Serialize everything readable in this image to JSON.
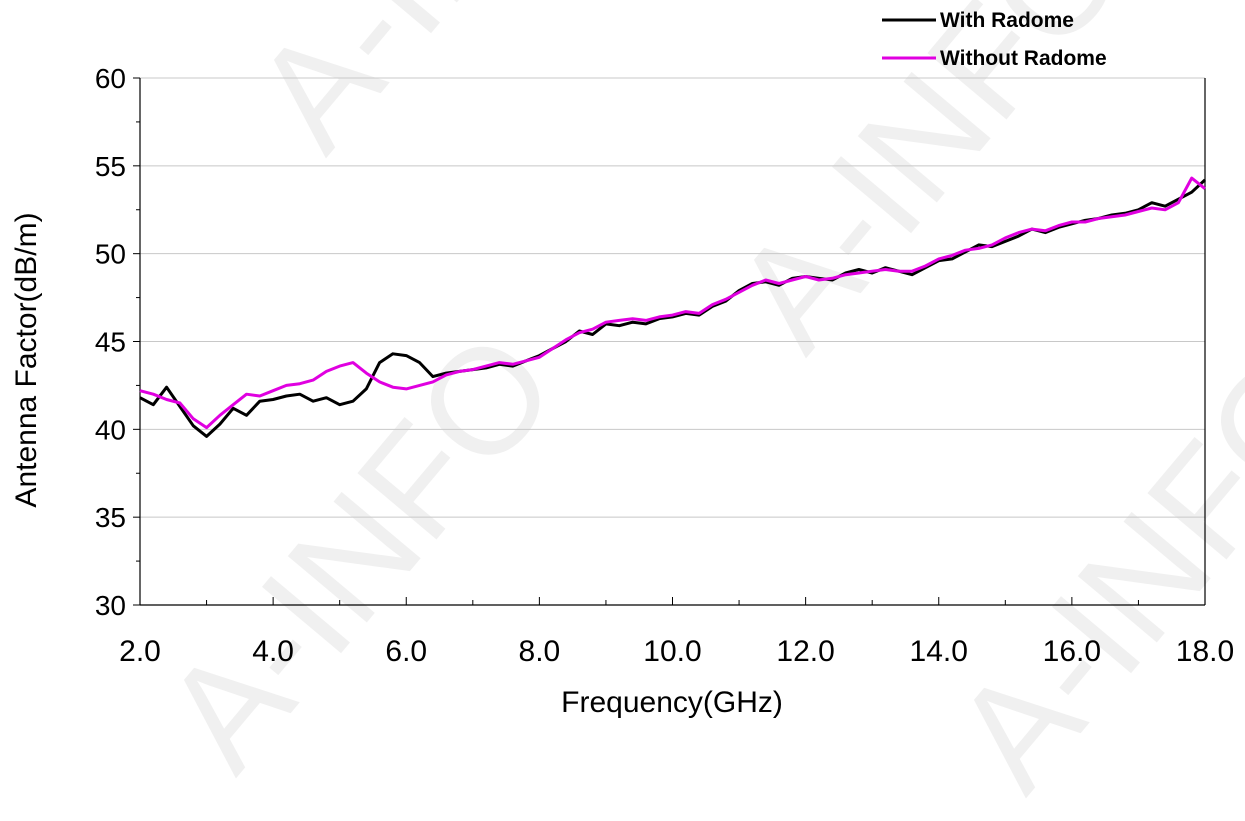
{
  "watermark_text": "A-INFO",
  "colors": {
    "with_radome": "#000000",
    "without_radome": "#e000e0",
    "grid": "#c8c8c8",
    "axis": "#000000"
  },
  "chart_data": {
    "type": "line",
    "xlabel": "Frequency(GHz)",
    "ylabel": "Antenna Factor(dB/m)",
    "xlim": [
      2.0,
      18.0
    ],
    "ylim": [
      30,
      60
    ],
    "x_ticks": [
      "2.0",
      "4.0",
      "6.0",
      "8.0",
      "10.0",
      "12.0",
      "14.0",
      "16.0",
      "18.0"
    ],
    "y_ticks": [
      "30",
      "35",
      "40",
      "45",
      "50",
      "55",
      "60"
    ],
    "grid": "horizontal",
    "legend_position": "top-right",
    "series": [
      {
        "name": "With Radome",
        "color": "#000000",
        "x": [
          2.0,
          2.2,
          2.4,
          2.6,
          2.8,
          3.0,
          3.2,
          3.4,
          3.6,
          3.8,
          4.0,
          4.2,
          4.4,
          4.6,
          4.8,
          5.0,
          5.2,
          5.4,
          5.6,
          5.8,
          6.0,
          6.2,
          6.4,
          6.6,
          6.8,
          7.0,
          7.2,
          7.4,
          7.6,
          7.8,
          8.0,
          8.2,
          8.4,
          8.6,
          8.8,
          9.0,
          9.2,
          9.4,
          9.6,
          9.8,
          10.0,
          10.2,
          10.4,
          10.6,
          10.8,
          11.0,
          11.2,
          11.4,
          11.6,
          11.8,
          12.0,
          12.2,
          12.4,
          12.6,
          12.8,
          13.0,
          13.2,
          13.4,
          13.6,
          13.8,
          14.0,
          14.2,
          14.4,
          14.6,
          14.8,
          15.0,
          15.2,
          15.4,
          15.6,
          15.8,
          16.0,
          16.2,
          16.4,
          16.6,
          16.8,
          17.0,
          17.2,
          17.4,
          17.6,
          17.8,
          18.0
        ],
        "y": [
          41.8,
          41.4,
          42.4,
          41.3,
          40.2,
          39.6,
          40.3,
          41.2,
          40.8,
          41.6,
          41.7,
          41.9,
          42.0,
          41.6,
          41.8,
          41.4,
          41.6,
          42.3,
          43.8,
          44.3,
          44.2,
          43.8,
          43.0,
          43.2,
          43.3,
          43.4,
          43.5,
          43.7,
          43.6,
          43.9,
          44.2,
          44.6,
          45.0,
          45.6,
          45.4,
          46.0,
          45.9,
          46.1,
          46.0,
          46.3,
          46.4,
          46.6,
          46.5,
          47.0,
          47.3,
          47.9,
          48.3,
          48.4,
          48.2,
          48.6,
          48.7,
          48.6,
          48.5,
          48.9,
          49.1,
          48.9,
          49.2,
          49.0,
          48.8,
          49.2,
          49.6,
          49.7,
          50.1,
          50.5,
          50.4,
          50.7,
          51.0,
          51.4,
          51.2,
          51.5,
          51.7,
          51.9,
          52.0,
          52.2,
          52.3,
          52.5,
          52.9,
          52.7,
          53.1,
          53.5,
          54.2
        ]
      },
      {
        "name": "Without Radome",
        "color": "#e000e0",
        "x": [
          2.0,
          2.2,
          2.4,
          2.6,
          2.8,
          3.0,
          3.2,
          3.4,
          3.6,
          3.8,
          4.0,
          4.2,
          4.4,
          4.6,
          4.8,
          5.0,
          5.2,
          5.4,
          5.6,
          5.8,
          6.0,
          6.2,
          6.4,
          6.6,
          6.8,
          7.0,
          7.2,
          7.4,
          7.6,
          7.8,
          8.0,
          8.2,
          8.4,
          8.6,
          8.8,
          9.0,
          9.2,
          9.4,
          9.6,
          9.8,
          10.0,
          10.2,
          10.4,
          10.6,
          10.8,
          11.0,
          11.2,
          11.4,
          11.6,
          11.8,
          12.0,
          12.2,
          12.4,
          12.6,
          12.8,
          13.0,
          13.2,
          13.4,
          13.6,
          13.8,
          14.0,
          14.2,
          14.4,
          14.6,
          14.8,
          15.0,
          15.2,
          15.4,
          15.6,
          15.8,
          16.0,
          16.2,
          16.4,
          16.6,
          16.8,
          17.0,
          17.2,
          17.4,
          17.6,
          17.8,
          18.0
        ],
        "y": [
          42.2,
          42.0,
          41.7,
          41.5,
          40.6,
          40.1,
          40.8,
          41.4,
          42.0,
          41.9,
          42.2,
          42.5,
          42.6,
          42.8,
          43.3,
          43.6,
          43.8,
          43.2,
          42.7,
          42.4,
          42.3,
          42.5,
          42.7,
          43.1,
          43.3,
          43.4,
          43.6,
          43.8,
          43.7,
          43.9,
          44.1,
          44.6,
          45.1,
          45.5,
          45.7,
          46.1,
          46.2,
          46.3,
          46.2,
          46.4,
          46.5,
          46.7,
          46.6,
          47.1,
          47.4,
          47.8,
          48.2,
          48.5,
          48.3,
          48.5,
          48.7,
          48.5,
          48.6,
          48.8,
          48.9,
          49.0,
          49.1,
          49.0,
          49.0,
          49.3,
          49.7,
          49.9,
          50.2,
          50.3,
          50.5,
          50.9,
          51.2,
          51.4,
          51.3,
          51.6,
          51.8,
          51.8,
          52.0,
          52.1,
          52.2,
          52.4,
          52.6,
          52.5,
          52.9,
          54.3,
          53.7
        ]
      }
    ]
  }
}
